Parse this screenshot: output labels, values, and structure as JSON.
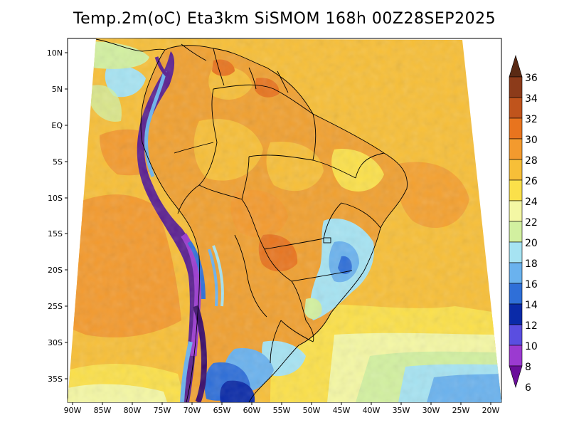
{
  "title": "Temp.2m(oC) Eta3km SiSMOM 168h 00Z28SEP2025",
  "lat_ticks": [
    "10N",
    "5N",
    "EQ",
    "5S",
    "10S",
    "15S",
    "20S",
    "25S",
    "30S",
    "35S"
  ],
  "lon_ticks": [
    "90W",
    "85W",
    "80W",
    "75W",
    "70W",
    "65W",
    "60W",
    "55W",
    "50W",
    "45W",
    "40W",
    "35W",
    "30W",
    "25W",
    "20W"
  ],
  "colorbar": {
    "labels": [
      "36",
      "34",
      "32",
      "30",
      "28",
      "26",
      "24",
      "22",
      "20",
      "18",
      "16",
      "14",
      "12",
      "10",
      "8",
      "6"
    ],
    "colors_top_to_bottom": [
      "#5a2a14",
      "#8c3b1a",
      "#c0541c",
      "#e8741e",
      "#f39a2e",
      "#f7bf38",
      "#fbe04a",
      "#f4f7a4",
      "#d2f0a0",
      "#a6e3f2",
      "#6ab2ee",
      "#2f6fd8",
      "#0a2aa8",
      "#5a4ee0",
      "#9b3ad0",
      "#6a0e9a"
    ]
  },
  "colors": {
    "ocean_warm": "#f7bf38",
    "ocean_hot": "#f39a2e",
    "land_hot": "#f0a030",
    "andes_cold": "#5a1f8f",
    "coast_line": "#000000"
  }
}
